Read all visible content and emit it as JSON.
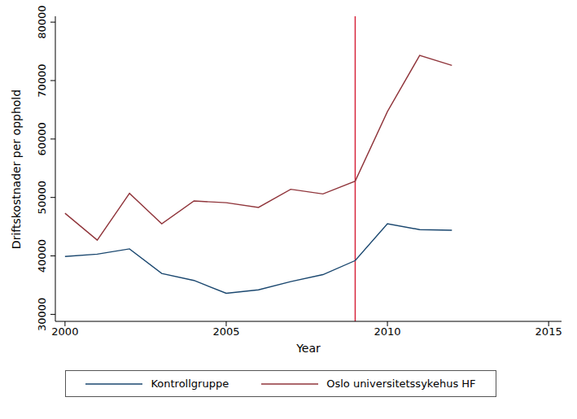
{
  "chart_data": {
    "type": "line",
    "x_label": "Year",
    "y_label": "Driftskostnader per opphold",
    "x": [
      2000,
      2001,
      2002,
      2003,
      2004,
      2005,
      2006,
      2007,
      2008,
      2009,
      2010,
      2011,
      2012
    ],
    "series": [
      {
        "name": "Kontrollgruppe",
        "color": "#1a476f",
        "values": [
          39900,
          40300,
          41200,
          37000,
          35800,
          33600,
          34200,
          35600,
          36800,
          39200,
          45500,
          44500,
          44400
        ]
      },
      {
        "name": "Oslo universitetssykehus HF",
        "color": "#90353b",
        "values": [
          47300,
          42700,
          50700,
          45500,
          49400,
          49100,
          48300,
          51400,
          50600,
          52800,
          64700,
          74300,
          72600
        ]
      }
    ],
    "xlim": [
      1999.7,
      2015.4
    ],
    "xticks": [
      2000,
      2005,
      2010,
      2015
    ],
    "ylim": [
      28800,
      81000
    ],
    "yticks": [
      30000,
      40000,
      50000,
      60000,
      70000,
      80000
    ],
    "grid": false,
    "legend": "bottom",
    "vline": {
      "x": 2009,
      "color": "#d7263d"
    }
  }
}
